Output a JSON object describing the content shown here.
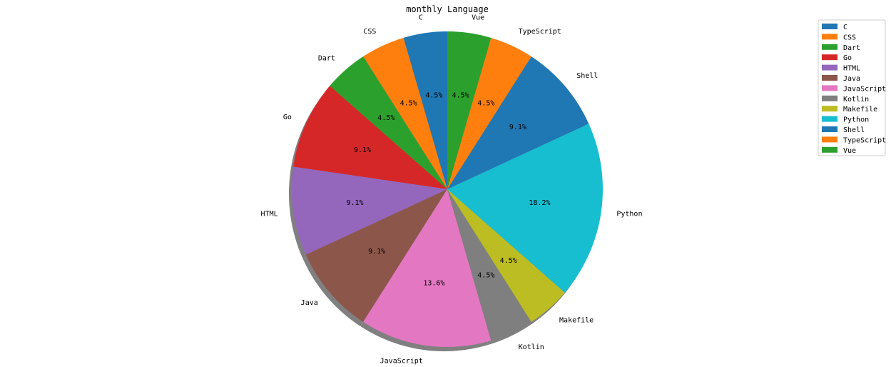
{
  "chart_data": {
    "type": "pie",
    "title": "monthly Language",
    "labels": [
      "C",
      "CSS",
      "Dart",
      "Go",
      "HTML",
      "Java",
      "JavaScript",
      "Kotlin",
      "Makefile",
      "Python",
      "Shell",
      "TypeScript",
      "Vue"
    ],
    "values": [
      1,
      1,
      1,
      2,
      2,
      2,
      3,
      1,
      1,
      4,
      2,
      1,
      1
    ],
    "percent_labels": [
      "4.5%",
      "4.5%",
      "4.5%",
      "9.1%",
      "9.1%",
      "9.1%",
      "13.6%",
      "4.5%",
      "4.5%",
      "18.2%",
      "9.1%",
      "4.5%",
      "4.5%"
    ],
    "colors": [
      "#1f77b4",
      "#ff7f0e",
      "#2ca02c",
      "#d62728",
      "#9467bd",
      "#8c564b",
      "#e377c2",
      "#7f7f7f",
      "#bcbd22",
      "#17becf",
      "#1f77b4",
      "#ff7f0e",
      "#2ca02c"
    ],
    "start_angle_deg": 90,
    "direction": "counterclockwise",
    "shadow": true,
    "legend": {
      "position": "top-right",
      "entries": [
        "C",
        "CSS",
        "Dart",
        "Go",
        "HTML",
        "Java",
        "JavaScript",
        "Kotlin",
        "Makefile",
        "Python",
        "Shell",
        "TypeScript",
        "Vue"
      ]
    }
  }
}
